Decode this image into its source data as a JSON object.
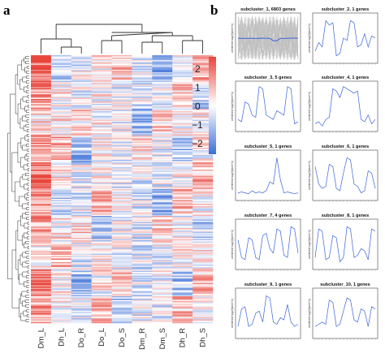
{
  "panels": {
    "a": "a",
    "b": "b"
  },
  "heatmap": {
    "columns": [
      "Dm_L",
      "Dh_L",
      "Do_R",
      "Do_L",
      "Do_S",
      "Dm_R",
      "Dm_S",
      "Dh_R",
      "Dh_S"
    ],
    "colorbar_ticks": [
      "2",
      "1",
      "0",
      "−1",
      "−2"
    ],
    "colors": {
      "high": "#e8453c",
      "mid": "#ffffff",
      "low": "#3b6fd8"
    }
  },
  "chart_data": [
    {
      "type": "heatmap",
      "title": "",
      "x_categories": [
        "Dm_L",
        "Dh_L",
        "Do_R",
        "Do_L",
        "Do_S",
        "Dm_R",
        "Dm_S",
        "Dh_R",
        "Dh_S"
      ],
      "value_range": [
        -2,
        2
      ],
      "colorbar_ticks": [
        2,
        1,
        0,
        -1,
        -2
      ]
    },
    {
      "type": "line",
      "title": "subcluster_1, 6803 genes",
      "ylabel": "centered log2(fpkm+1)",
      "y": [
        0.05,
        0.05,
        0.05,
        0.05,
        0.05,
        0.04,
        0.05,
        0.06,
        0.05,
        0.05,
        -0.1,
        -0.1,
        0.05,
        0.05,
        0.05,
        0.06,
        0.06,
        0.06
      ],
      "band": true
    },
    {
      "type": "line",
      "title": "subcluster_2, 1 genes",
      "ylabel": "centered log2(fpkm+1)",
      "y": [
        0.2,
        0.4,
        0.3,
        0.9,
        0.8,
        0.85,
        0.1,
        0.15,
        0.5,
        0.45,
        0.9,
        0.85,
        0.3,
        0.35,
        0.6,
        0.3,
        0.55,
        0.5
      ]
    },
    {
      "type": "line",
      "title": "subcluster_3, 5 genes",
      "ylabel": "centered log2(fpkm+1)",
      "y": [
        0.2,
        0.15,
        0.6,
        0.55,
        0.3,
        0.25,
        0.95,
        0.9,
        0.3,
        0.25,
        0.2,
        0.4,
        0.35,
        0.3,
        0.95,
        0.9,
        0.1,
        0.15
      ]
    },
    {
      "type": "line",
      "title": "subcluster_4, 1 genes",
      "ylabel": "centered log2(fpkm+1)",
      "y": [
        0.1,
        0.15,
        0.05,
        0.2,
        0.25,
        0.9,
        0.85,
        0.7,
        0.95,
        0.9,
        0.85,
        0.8,
        0.85,
        0.2,
        0.15,
        0.3,
        0.1,
        0.2
      ]
    },
    {
      "type": "line",
      "title": "subcluster_5, 1 genes",
      "ylabel": "centered log2(fpkm+1)",
      "y": [
        0.1,
        0.12,
        0.1,
        0.08,
        0.15,
        0.1,
        0.12,
        0.1,
        0.15,
        0.35,
        0.3,
        0.9,
        0.4,
        0.1,
        0.12,
        0.1,
        0.08,
        0.1
      ]
    },
    {
      "type": "line",
      "title": "subcluster_6, 1 genes",
      "ylabel": "centered log2(fpkm+1)",
      "y": [
        0.7,
        0.3,
        0.2,
        0.25,
        0.75,
        0.7,
        0.2,
        0.15,
        0.55,
        0.9,
        0.85,
        0.3,
        0.25,
        0.1,
        0.15,
        0.6,
        0.55,
        0.2
      ]
    },
    {
      "type": "line",
      "title": "subcluster_7, 4 genes",
      "ylabel": "centered log2(fpkm+1)",
      "y": [
        0.6,
        0.2,
        0.15,
        0.65,
        0.6,
        0.2,
        0.15,
        0.7,
        0.75,
        0.4,
        0.3,
        0.85,
        0.8,
        0.25,
        0.2,
        0.9,
        0.85,
        0.3
      ]
    },
    {
      "type": "line",
      "title": "subcluster_8, 1 genes",
      "ylabel": "centered log2(fpkm+1)",
      "y": [
        0.2,
        0.85,
        0.8,
        0.15,
        0.2,
        0.7,
        0.65,
        0.1,
        0.2,
        0.9,
        0.85,
        0.2,
        0.25,
        0.4,
        0.35,
        0.15,
        0.85,
        0.8
      ]
    },
    {
      "type": "line",
      "title": "subcluster_9, 1 genes",
      "ylabel": "centered log2(fpkm+1)",
      "y": [
        0.2,
        0.6,
        0.65,
        0.2,
        0.25,
        0.5,
        0.55,
        0.3,
        0.9,
        0.85,
        0.3,
        0.25,
        0.4,
        0.35,
        0.7,
        0.3,
        0.2,
        0.25
      ]
    },
    {
      "type": "line",
      "title": "subcluster_10, 1 genes",
      "ylabel": "centered log2(fpkm+1)",
      "y": [
        0.2,
        0.25,
        0.3,
        0.25,
        0.8,
        0.75,
        0.2,
        0.25,
        0.55,
        0.85,
        0.8,
        0.35,
        0.3,
        0.6,
        0.55,
        0.2,
        0.65,
        0.6
      ]
    }
  ]
}
